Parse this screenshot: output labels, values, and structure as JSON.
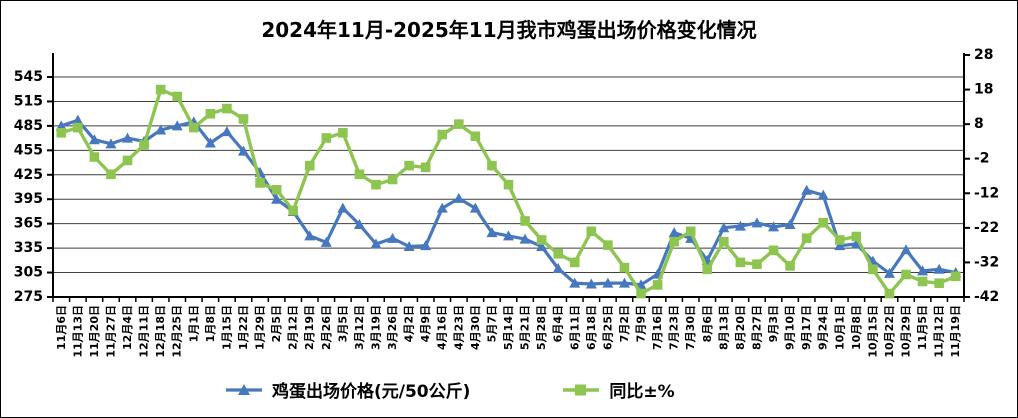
{
  "chart_data": {
    "type": "line",
    "title": "2024年11月-2025年11月我市鸡蛋出场价格变化情况",
    "categories": [
      "11月6日",
      "11月13日",
      "11月20日",
      "11月27日",
      "12月4日",
      "12月11日",
      "12月18日",
      "12月25日",
      "1月1日",
      "1月8日",
      "1月15日",
      "1月22日",
      "1月29日",
      "2月5日",
      "2月12日",
      "2月19日",
      "2月26日",
      "3月5日",
      "3月12日",
      "3月19日",
      "3月26日",
      "4月2日",
      "4月9日",
      "4月16日",
      "4月23日",
      "4月30日",
      "5月7日",
      "5月14日",
      "5月21日",
      "5月28日",
      "6月4日",
      "6月11日",
      "6月18日",
      "6月25日",
      "7月2日",
      "7月9日",
      "7月16日",
      "7月23日",
      "7月30日",
      "8月6日",
      "8月13日",
      "8月20日",
      "8月27日",
      "9月3日",
      "9月10日",
      "9月17日",
      "9月24日",
      "10月1日",
      "10月8日",
      "10月15日",
      "10月22日",
      "10月29日",
      "11月5日",
      "11月12日",
      "11月19日"
    ],
    "series": [
      {
        "name": "鸡蛋出场价格(元/50公斤)",
        "axis": "left",
        "color": "#4778BE",
        "marker": "triangle",
        "values": [
          485,
          492,
          468,
          463,
          470,
          466,
          480,
          485,
          490,
          464,
          478,
          454,
          428,
          395,
          380,
          350,
          342,
          384,
          364,
          340,
          347,
          337,
          338,
          384,
          396,
          384,
          354,
          350,
          346,
          337,
          310,
          292,
          291,
          292,
          292,
          290,
          303,
          354,
          347,
          320,
          360,
          362,
          366,
          361,
          364,
          406,
          400,
          338,
          340,
          319,
          304,
          333,
          307,
          309,
          305
        ]
      },
      {
        "name": "同比±%",
        "axis": "right",
        "color": "#8DC550",
        "marker": "square",
        "values": [
          5.5,
          7,
          -1.5,
          -6.5,
          -2.5,
          2,
          18,
          16,
          7,
          11,
          12.5,
          9.5,
          -9,
          -11,
          -17,
          -4,
          4,
          5.5,
          -6.5,
          -9.5,
          -8,
          -4,
          -4.5,
          5,
          8,
          4.5,
          -4,
          -9.5,
          -20,
          -25.5,
          -29.5,
          -32,
          -23,
          -27,
          -33.5,
          -41,
          -38.5,
          -26,
          -23,
          -34,
          -26,
          -32,
          -32.5,
          -28.5,
          -33,
          -25,
          -20.5,
          -25.5,
          -24.5,
          -34,
          -41,
          -35.5,
          -37.5,
          -38,
          -36
        ]
      }
    ],
    "left_axis": {
      "min": 275,
      "max": 545,
      "step": 30,
      "ticks": [
        545,
        515,
        485,
        455,
        425,
        395,
        365,
        335,
        305,
        275
      ]
    },
    "right_axis": {
      "min": -42,
      "max": 28,
      "step": 10,
      "ticks": [
        28,
        18,
        8,
        -2,
        -12,
        -22,
        -32,
        -42
      ]
    },
    "grid": true,
    "legend_position": "bottom",
    "colors": {
      "grid": "#3f3f3f",
      "axis": "#000000",
      "text": "#000000"
    }
  }
}
